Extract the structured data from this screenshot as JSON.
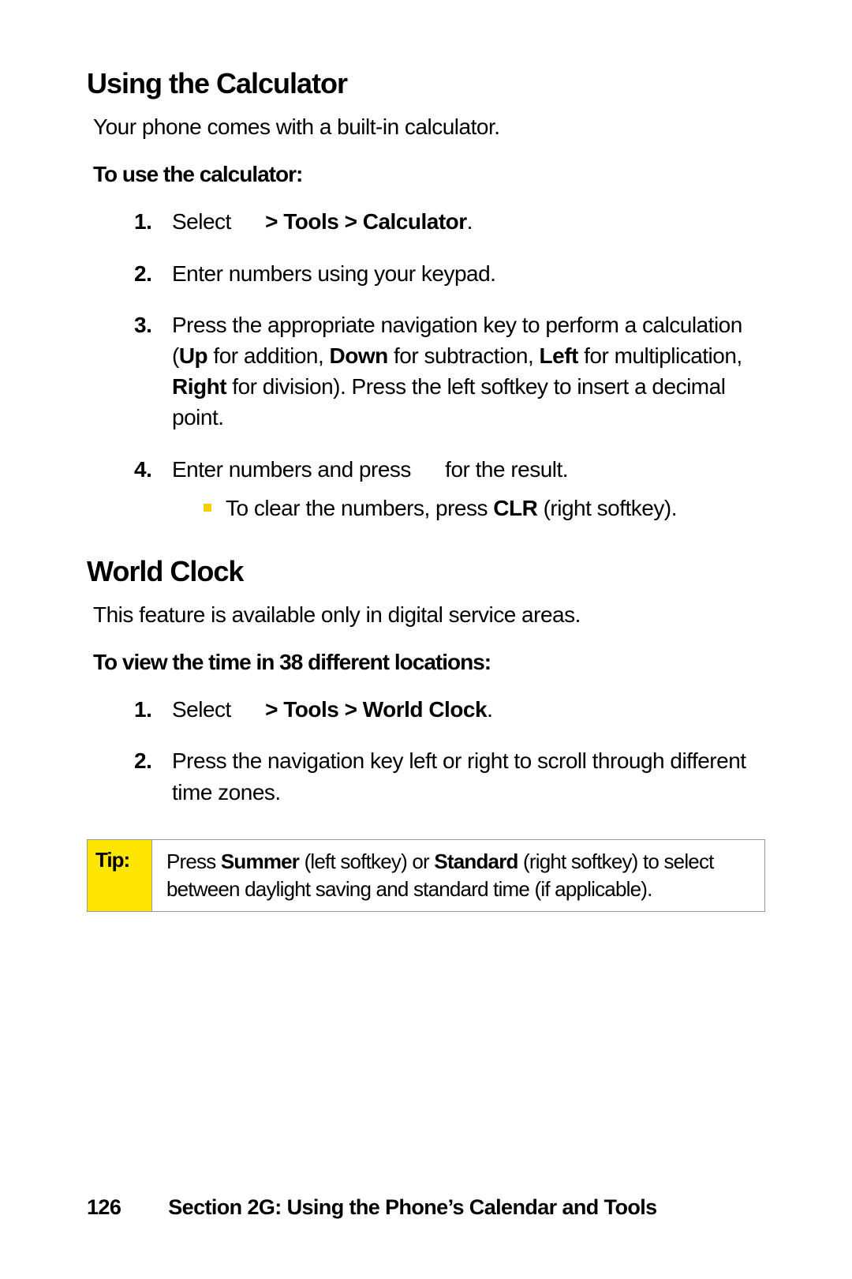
{
  "colors": {
    "text": "#000000",
    "background": "#ffffff",
    "tip_bg": "#ffe600",
    "tip_border": "#999999",
    "bullet": "#f3d000"
  },
  "calc": {
    "heading": "Using the Calculator",
    "intro": "Your phone comes with a built-in calculator.",
    "subheading": "To use the calculator:",
    "steps": {
      "s1": {
        "n": "1.",
        "pre": "Select",
        "bold": "> Tools > Calculator",
        "post": "."
      },
      "s2": {
        "n": "2.",
        "text": "Enter numbers using your keypad."
      },
      "s3": {
        "n": "3.",
        "t0": "Press the appropriate navigation key to perform a calculation (",
        "b1": "Up",
        "t1": " for addition, ",
        "b2": "Down",
        "t2": " for subtraction, ",
        "b3": "Left",
        "t3": " for multiplication, ",
        "b4": "Right",
        "t4": " for division). Press the left softkey to insert a decimal point."
      },
      "s4": {
        "n": "4.",
        "pre": "Enter numbers and press",
        "post": "for the result.",
        "sub_pre": "To clear the numbers, press ",
        "sub_bold": "CLR",
        "sub_post": " (right softkey)."
      }
    }
  },
  "world": {
    "heading": "World Clock",
    "intro": "This feature is available only in digital service areas.",
    "subheading": "To view the time in 38 different locations:",
    "steps": {
      "s1": {
        "n": "1.",
        "pre": "Select",
        "bold": "> Tools > World Clock",
        "post": "."
      },
      "s2": {
        "n": "2.",
        "text": "Press the navigation key left or right to scroll through different time zones."
      }
    },
    "tip": {
      "label": "Tip:",
      "t0": "Press ",
      "b1": "Summer",
      "t1": " (left softkey) or ",
      "b2": "Standard",
      "t2": " (right softkey) to select between daylight saving and standard time (if applicable)."
    }
  },
  "footer": {
    "page_num": "126",
    "section": "Section 2G: Using the Phone’s Calendar and Tools"
  }
}
